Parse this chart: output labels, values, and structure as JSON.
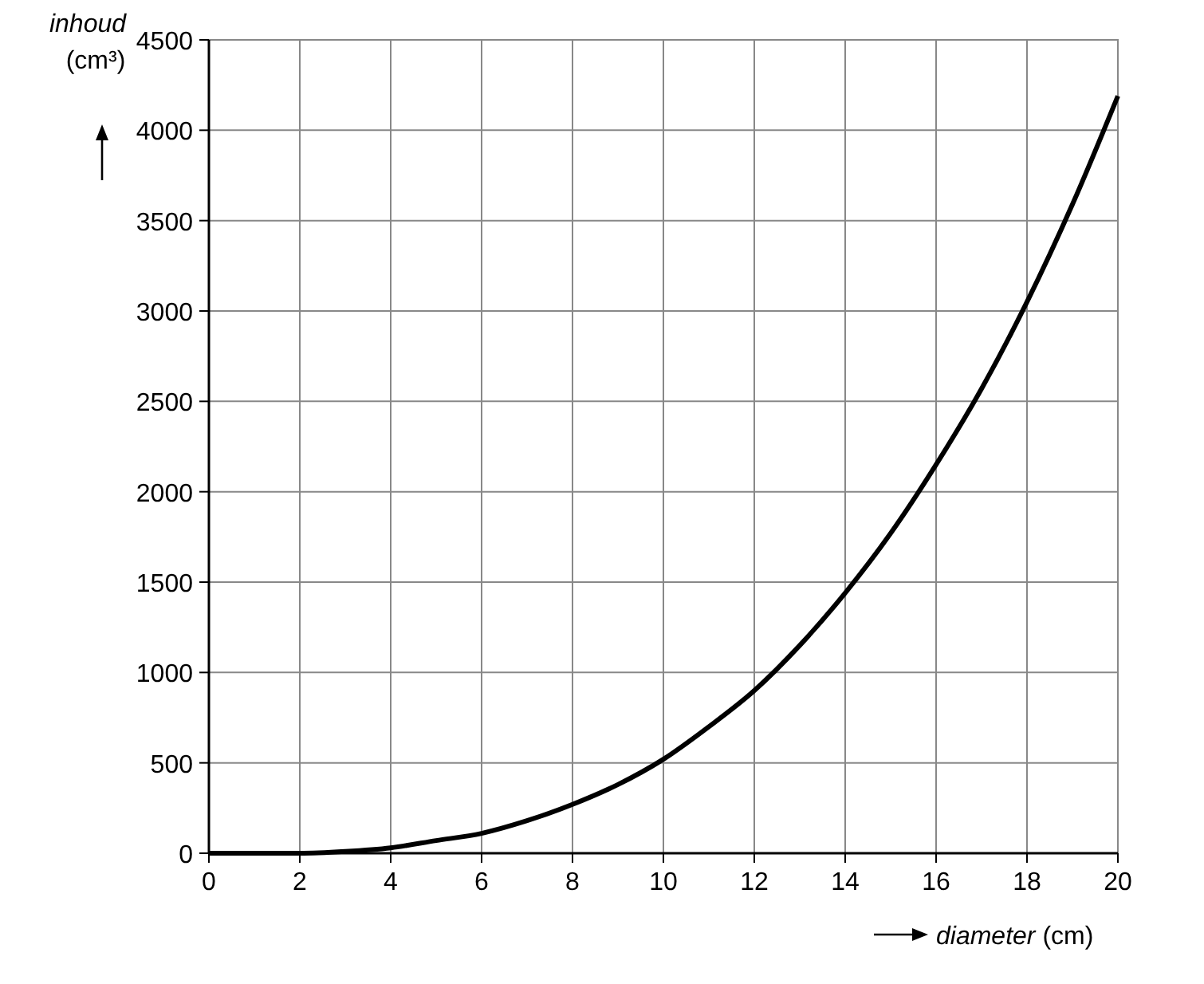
{
  "chart_data": {
    "type": "line",
    "xlabel": "diameter (cm)",
    "ylabel": "inhoud (cm³)",
    "x": [
      0,
      1,
      2,
      3,
      4,
      5,
      6,
      7,
      8,
      9,
      10,
      11,
      12,
      13,
      14,
      15,
      16,
      17,
      18,
      19,
      20
    ],
    "series": [
      {
        "color": "#000000",
        "values": [
          0,
          0,
          0,
          10,
          30,
          70,
          110,
          180,
          270,
          380,
          520,
          700,
          900,
          1150,
          1440,
          1770,
          2150,
          2570,
          3050,
          3590,
          4190
        ]
      }
    ],
    "xlim": [
      0,
      20
    ],
    "xticks": [
      0,
      2,
      4,
      6,
      8,
      10,
      12,
      14,
      16,
      18,
      20
    ],
    "ylim": [
      0,
      4500
    ],
    "yticks": [
      0,
      500,
      1000,
      1500,
      2000,
      2500,
      3000,
      3500,
      4000,
      4500
    ],
    "grid": true,
    "marker": "none",
    "line_style": "solid"
  }
}
